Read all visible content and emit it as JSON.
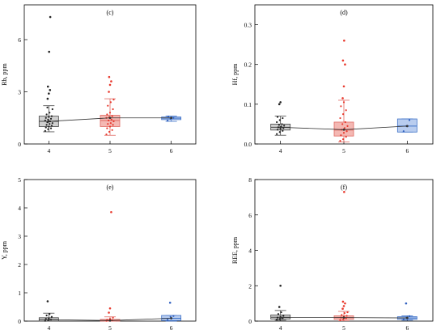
{
  "colors": {
    "g4": {
      "fill": "#cfcfcf",
      "stroke": "#444444",
      "pt": "#222222"
    },
    "g5": {
      "fill": "#f4b8b3",
      "stroke": "#e06a63",
      "pt": "#e8392d"
    },
    "g6": {
      "fill": "#b9cdef",
      "stroke": "#3f72c8",
      "pt": "#2f5fbf"
    },
    "meanLine": "#333333"
  },
  "chart_data": [
    {
      "type": "box",
      "tag": "(c)",
      "ylabel": "Rb, ppm",
      "categories": [
        "4",
        "5",
        "6"
      ],
      "ylim": [
        0,
        8
      ],
      "yticks": [
        0,
        3,
        6
      ],
      "ytick_labels": [
        "0",
        "3",
        "6"
      ],
      "grid": false,
      "boxes": [
        {
          "group": "4",
          "whisker_low": 0.7,
          "q1": 1.0,
          "median": 1.3,
          "q3": 1.6,
          "whisker_high": 2.2,
          "mean": 1.3,
          "points": [
            0.75,
            0.85,
            0.9,
            0.95,
            1.0,
            1.05,
            1.1,
            1.15,
            1.2,
            1.25,
            1.3,
            1.35,
            1.4,
            1.45,
            1.5,
            1.55,
            1.6,
            1.7,
            1.8,
            2.0,
            2.1
          ],
          "outliers": [
            2.6,
            2.9,
            3.1,
            3.3,
            5.3,
            7.3
          ]
        },
        {
          "group": "5",
          "whisker_low": 0.5,
          "q1": 1.0,
          "median": 1.35,
          "q3": 1.65,
          "whisker_high": 2.6,
          "mean": 1.5,
          "points": [
            0.55,
            0.7,
            0.8,
            0.9,
            1.0,
            1.1,
            1.15,
            1.2,
            1.3,
            1.35,
            1.4,
            1.5,
            1.55,
            1.6,
            1.7,
            1.8,
            2.0,
            2.2,
            2.4,
            2.55
          ],
          "outliers": [
            3.0,
            3.4,
            3.6,
            3.85
          ]
        },
        {
          "group": "6",
          "whisker_low": 1.3,
          "q1": 1.4,
          "median": 1.48,
          "q3": 1.55,
          "whisker_high": 1.6,
          "mean": 1.5,
          "points": [
            1.35,
            1.45,
            1.5,
            1.58
          ],
          "outliers": []
        }
      ]
    },
    {
      "type": "box",
      "tag": "(d)",
      "ylabel": "Hf, ppm",
      "categories": [
        "4",
        "5",
        "6"
      ],
      "ylim": [
        0,
        0.35
      ],
      "yticks": [
        0,
        0.1,
        0.2,
        0.3
      ],
      "ytick_labels": [
        "0.0",
        "0.1",
        "0.2",
        "0.3"
      ],
      "grid": false,
      "boxes": [
        {
          "group": "4",
          "whisker_low": 0.022,
          "q1": 0.035,
          "median": 0.042,
          "q3": 0.05,
          "whisker_high": 0.07,
          "mean": 0.042,
          "points": [
            0.025,
            0.03,
            0.033,
            0.036,
            0.038,
            0.04,
            0.042,
            0.044,
            0.046,
            0.048,
            0.05,
            0.055,
            0.06,
            0.065,
            0.068
          ],
          "outliers": [
            0.1,
            0.105
          ]
        },
        {
          "group": "5",
          "whisker_low": 0.005,
          "q1": 0.02,
          "median": 0.035,
          "q3": 0.055,
          "whisker_high": 0.11,
          "mean": 0.036,
          "points": [
            0.008,
            0.012,
            0.018,
            0.022,
            0.028,
            0.032,
            0.036,
            0.04,
            0.045,
            0.05,
            0.055,
            0.065,
            0.075,
            0.085,
            0.095,
            0.105
          ],
          "outliers": [
            0.115,
            0.145,
            0.2,
            0.21,
            0.26
          ]
        },
        {
          "group": "6",
          "whisker_low": 0.03,
          "q1": 0.03,
          "median": 0.045,
          "q3": 0.063,
          "whisker_high": 0.063,
          "mean": 0.045,
          "points": [
            0.032,
            0.045,
            0.06
          ],
          "outliers": []
        }
      ]
    },
    {
      "type": "box",
      "tag": "(e)",
      "ylabel": "Y, ppm",
      "categories": [
        "4",
        "5",
        "6"
      ],
      "ylim": [
        0,
        5
      ],
      "yticks": [
        0,
        1,
        2,
        3,
        4,
        5
      ],
      "ytick_labels": [
        "0",
        "1",
        "2",
        "3",
        "4",
        "5"
      ],
      "grid": false,
      "boxes": [
        {
          "group": "4",
          "whisker_low": 0.0,
          "q1": 0.0,
          "median": 0.05,
          "q3": 0.12,
          "whisker_high": 0.28,
          "mean": 0.05,
          "points": [
            0.01,
            0.03,
            0.05,
            0.08,
            0.1,
            0.15,
            0.2,
            0.25
          ],
          "outliers": [
            0.7
          ]
        },
        {
          "group": "5",
          "whisker_low": 0.0,
          "q1": 0.0,
          "median": 0.02,
          "q3": 0.06,
          "whisker_high": 0.15,
          "mean": 0.02,
          "points": [
            0.01,
            0.02,
            0.03,
            0.05,
            0.08,
            0.12
          ],
          "outliers": [
            0.3,
            0.45,
            3.85
          ]
        },
        {
          "group": "6",
          "whisker_low": 0.0,
          "q1": 0.02,
          "median": 0.1,
          "q3": 0.2,
          "whisker_high": 0.2,
          "mean": 0.1,
          "points": [
            0.05,
            0.15,
            0.18
          ],
          "outliers": [
            0.65
          ]
        }
      ]
    },
    {
      "type": "box",
      "tag": "(f)",
      "ylabel": "REE, ppm",
      "categories": [
        "4",
        "5",
        "6"
      ],
      "ylim": [
        0,
        8
      ],
      "yticks": [
        0,
        2,
        4,
        6,
        8
      ],
      "ytick_labels": [
        "0",
        "2",
        "4",
        "6",
        "8"
      ],
      "grid": false,
      "boxes": [
        {
          "group": "4",
          "whisker_low": 0.05,
          "q1": 0.12,
          "median": 0.22,
          "q3": 0.35,
          "whisker_high": 0.6,
          "mean": 0.2,
          "points": [
            0.08,
            0.12,
            0.15,
            0.2,
            0.25,
            0.3,
            0.4,
            0.5
          ],
          "outliers": [
            0.8,
            2.0
          ]
        },
        {
          "group": "5",
          "whisker_low": 0.02,
          "q1": 0.1,
          "median": 0.2,
          "q3": 0.3,
          "whisker_high": 0.55,
          "mean": 0.2,
          "points": [
            0.05,
            0.1,
            0.15,
            0.2,
            0.25,
            0.3,
            0.35,
            0.45,
            0.5
          ],
          "outliers": [
            0.7,
            0.85,
            1.0,
            1.1,
            7.3
          ]
        },
        {
          "group": "6",
          "whisker_low": 0.05,
          "q1": 0.1,
          "median": 0.18,
          "q3": 0.25,
          "whisker_high": 0.3,
          "mean": 0.18,
          "points": [
            0.1,
            0.2,
            0.28
          ],
          "outliers": [
            1.0
          ]
        }
      ]
    }
  ]
}
